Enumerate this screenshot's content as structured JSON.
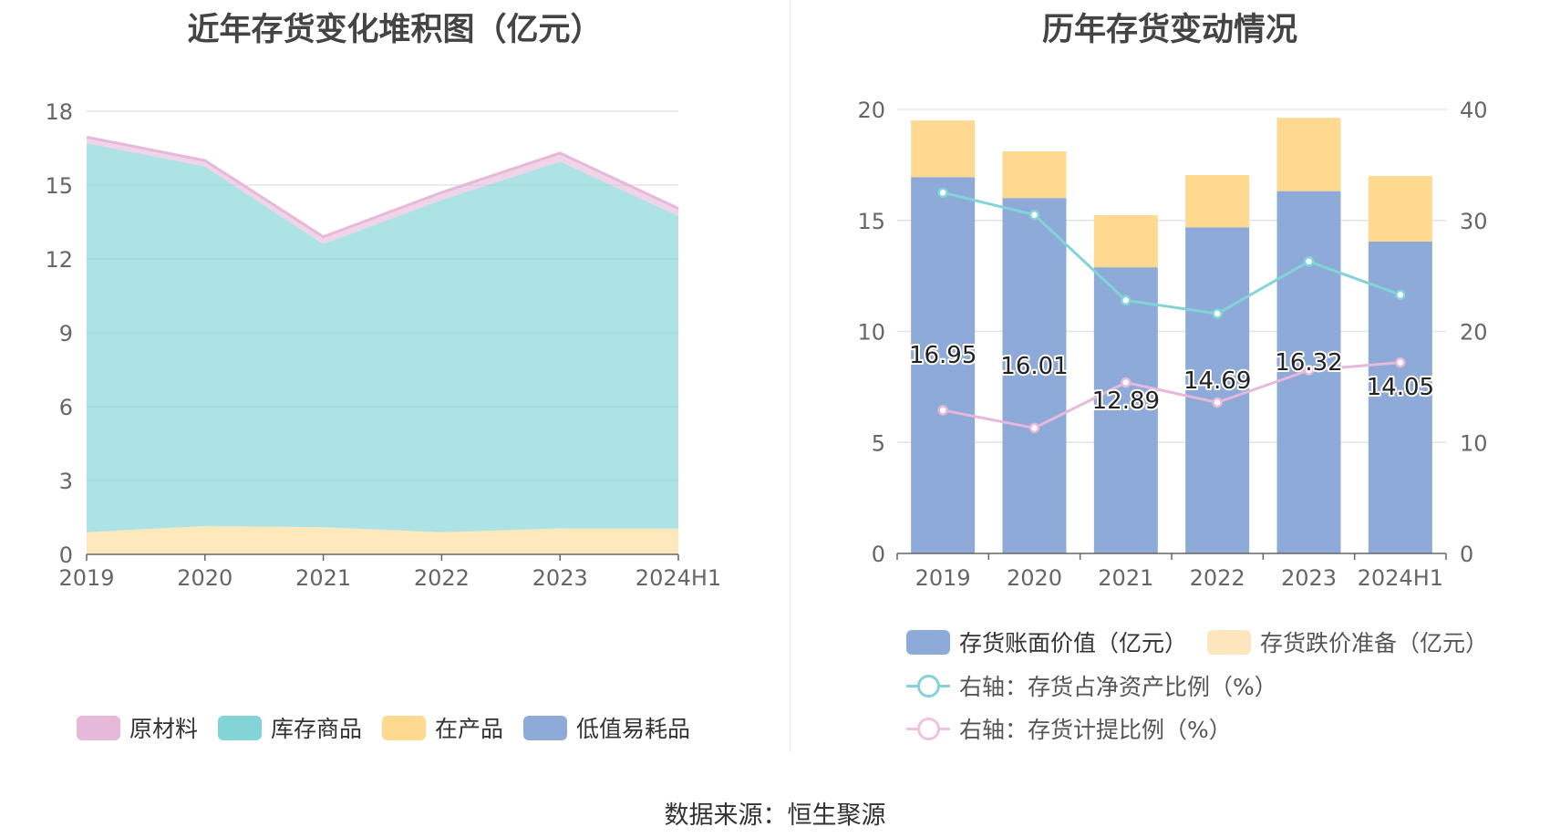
{
  "left_chart": {
    "title": "近年存货变化堆积图（亿元）",
    "legend": [
      {
        "label": "原材料",
        "color": "#e6b8d9"
      },
      {
        "label": "库存商品",
        "color": "#82d4d7"
      },
      {
        "label": "在产品",
        "color": "#fed98f"
      },
      {
        "label": "低值易耗品",
        "color": "#8eaad9"
      }
    ]
  },
  "right_chart": {
    "title": "历年存货变动情况",
    "legend": [
      {
        "label": "存货账面价值（亿元）",
        "color": "#8eaad9"
      },
      {
        "label": "存货跌价准备（亿元）",
        "color": "#fde5bd"
      },
      {
        "label": "右轴：存货占净资产比例（%）",
        "color": "#82d4d7"
      },
      {
        "label": "右轴：存货计提比例（%）",
        "color": "#ecc3e0"
      }
    ]
  },
  "source": "数据来源：恒生聚源",
  "chart_data": [
    {
      "type": "area",
      "stacked": true,
      "title": "近年存货变化堆积图（亿元）",
      "categories": [
        "2019",
        "2020",
        "2021",
        "2022",
        "2023",
        "2024H1"
      ],
      "yticks": [
        "0",
        "3",
        "6",
        "9",
        "12",
        "15",
        "18"
      ],
      "ylim": [
        0,
        18
      ],
      "grid": true,
      "legend_position": "bottom",
      "series": [
        {
          "name": "低值易耗品",
          "color": "#8eaad9",
          "values": [
            0,
            0,
            0,
            0,
            0,
            0
          ]
        },
        {
          "name": "在产品",
          "color": "#fed98f",
          "values": [
            0.9,
            1.15,
            1.1,
            0.9,
            1.05,
            1.05
          ]
        },
        {
          "name": "库存商品",
          "color": "#82d4d7",
          "values": [
            15.8,
            14.6,
            11.5,
            13.5,
            14.9,
            12.7
          ]
        },
        {
          "name": "原材料",
          "color": "#e6b8d9",
          "values": [
            0.25,
            0.25,
            0.3,
            0.3,
            0.35,
            0.3
          ]
        }
      ]
    },
    {
      "type": "bar",
      "stacked": true,
      "title": "历年存货变动情况",
      "categories": [
        "2019",
        "2020",
        "2021",
        "2022",
        "2023",
        "2024H1"
      ],
      "yticks_left": [
        "0",
        "5",
        "10",
        "15",
        "20"
      ],
      "yticks_right": [
        "0",
        "10",
        "20",
        "30",
        "40"
      ],
      "ylim_left": [
        0,
        20
      ],
      "ylim_right": [
        0,
        40
      ],
      "grid": true,
      "legend_position": "bottom",
      "series": [
        {
          "name": "存货账面价值（亿元）",
          "color": "#8eaad9",
          "axis": "left",
          "values": [
            16.95,
            16.01,
            12.89,
            14.69,
            16.32,
            14.05
          ],
          "labels": [
            "16.95",
            "16.01",
            "12.89",
            "14.69",
            "16.32",
            "14.05"
          ]
        },
        {
          "name": "存货跌价准备（亿元）",
          "color": "#fed98f",
          "axis": "left",
          "values": [
            2.55,
            2.1,
            2.35,
            2.35,
            3.3,
            2.95
          ]
        },
        {
          "name": "右轴：存货占净资产比例（%）",
          "type": "line",
          "color": "#82d4d7",
          "axis": "right",
          "values": [
            32.5,
            30.5,
            22.8,
            21.6,
            26.3,
            23.3
          ]
        },
        {
          "name": "右轴：存货计提比例（%）",
          "type": "line",
          "color": "#e6b8d9",
          "axis": "right",
          "values": [
            12.9,
            11.3,
            15.4,
            13.6,
            16.5,
            17.2
          ]
        }
      ]
    }
  ]
}
